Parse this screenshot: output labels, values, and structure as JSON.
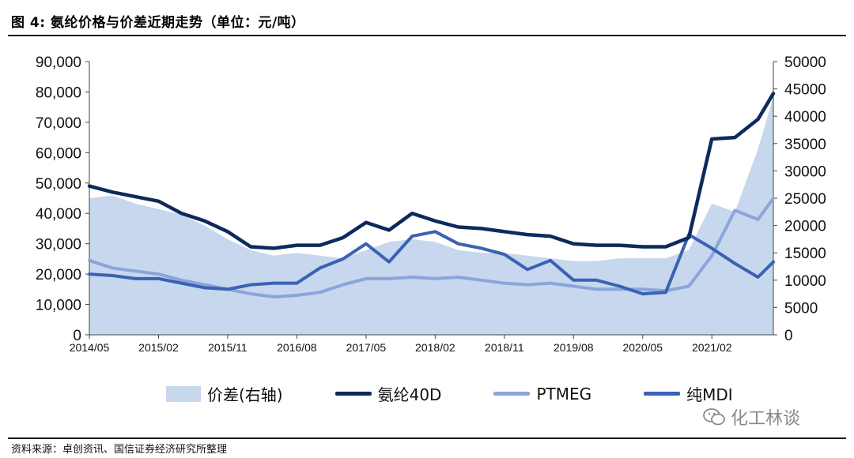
{
  "header": {
    "title": "图 4: 氨纶价格与价差近期走势（单位：元/吨）"
  },
  "footer": {
    "source": "资料来源：卓创资讯、国信证券经济研究所整理"
  },
  "watermark": {
    "text": "化工林谈",
    "icon": "wechat-icon"
  },
  "chart_data": {
    "type": "line",
    "title": "",
    "x_tick_labels": [
      "2014/05",
      "2015/02",
      "2015/11",
      "2016/08",
      "2017/05",
      "2018/02",
      "2018/11",
      "2019/08",
      "2020/05",
      "2021/02"
    ],
    "x_range_months": [
      "2014/05",
      "2021/10"
    ],
    "y_left": {
      "range": [
        0,
        90000
      ],
      "ticks": [
        "0",
        "10,000",
        "20,000",
        "30,000",
        "40,000",
        "50,000",
        "60,000",
        "70,000",
        "80,000",
        "90,000"
      ]
    },
    "y_right": {
      "range": [
        0,
        50000
      ],
      "ticks": [
        "0",
        "5000",
        "10000",
        "15000",
        "20000",
        "25000",
        "30000",
        "35000",
        "40000",
        "45000",
        "50000"
      ]
    },
    "colors": {
      "spread": "#c7d7ee",
      "spandex_40d": "#0d2a5c",
      "ptmeg": "#8aa5da",
      "pure_mdi": "#3a62b4"
    },
    "series": [
      {
        "name": "价差(右轴)",
        "axis": "right",
        "style": "area",
        "x": [
          "2014/05",
          "2014/08",
          "2014/11",
          "2015/02",
          "2015/05",
          "2015/08",
          "2015/11",
          "2016/02",
          "2016/05",
          "2016/08",
          "2016/11",
          "2017/02",
          "2017/05",
          "2017/08",
          "2017/11",
          "2018/02",
          "2018/05",
          "2018/08",
          "2018/11",
          "2019/02",
          "2019/05",
          "2019/08",
          "2019/11",
          "2020/02",
          "2020/05",
          "2020/08",
          "2020/11",
          "2021/02",
          "2021/05",
          "2021/08",
          "2021/10"
        ],
        "values": [
          25000,
          25500,
          24000,
          23000,
          22000,
          20000,
          17500,
          15500,
          14500,
          15000,
          14500,
          14000,
          15500,
          17000,
          17500,
          17000,
          15500,
          15000,
          15000,
          14500,
          14000,
          13500,
          13500,
          14000,
          14000,
          14000,
          15500,
          24000,
          22500,
          34000,
          43500
        ]
      },
      {
        "name": "氨纶40D",
        "axis": "left",
        "style": "line",
        "x": [
          "2014/05",
          "2014/08",
          "2014/11",
          "2015/02",
          "2015/05",
          "2015/08",
          "2015/11",
          "2016/02",
          "2016/05",
          "2016/08",
          "2016/11",
          "2017/02",
          "2017/05",
          "2017/08",
          "2017/11",
          "2018/02",
          "2018/05",
          "2018/08",
          "2018/11",
          "2019/02",
          "2019/05",
          "2019/08",
          "2019/11",
          "2020/02",
          "2020/05",
          "2020/08",
          "2020/11",
          "2021/02",
          "2021/05",
          "2021/08",
          "2021/10"
        ],
        "values": [
          49000,
          47000,
          45500,
          44000,
          40000,
          37500,
          34000,
          29000,
          28500,
          29500,
          29500,
          32000,
          37000,
          34500,
          40000,
          37500,
          35500,
          35000,
          34000,
          33000,
          32500,
          30000,
          29500,
          29500,
          29000,
          29000,
          32000,
          64500,
          65000,
          71000,
          79500
        ]
      },
      {
        "name": "PTMEG",
        "axis": "left",
        "style": "line",
        "x": [
          "2014/05",
          "2014/08",
          "2014/11",
          "2015/02",
          "2015/05",
          "2015/08",
          "2015/11",
          "2016/02",
          "2016/05",
          "2016/08",
          "2016/11",
          "2017/02",
          "2017/05",
          "2017/08",
          "2017/11",
          "2018/02",
          "2018/05",
          "2018/08",
          "2018/11",
          "2019/02",
          "2019/05",
          "2019/08",
          "2019/11",
          "2020/02",
          "2020/05",
          "2020/08",
          "2020/11",
          "2021/02",
          "2021/05",
          "2021/08",
          "2021/10"
        ],
        "values": [
          24500,
          22000,
          21000,
          20000,
          18000,
          16500,
          15000,
          13500,
          12500,
          13000,
          14000,
          16500,
          18500,
          18500,
          19000,
          18500,
          19000,
          18000,
          17000,
          16500,
          17000,
          16000,
          15000,
          15000,
          15000,
          14500,
          16000,
          26000,
          41000,
          38000,
          45000
        ]
      },
      {
        "name": "纯MDI",
        "axis": "left",
        "style": "line",
        "x": [
          "2014/05",
          "2014/08",
          "2014/11",
          "2015/02",
          "2015/05",
          "2015/08",
          "2015/11",
          "2016/02",
          "2016/05",
          "2016/08",
          "2016/11",
          "2017/02",
          "2017/05",
          "2017/08",
          "2017/11",
          "2018/02",
          "2018/05",
          "2018/08",
          "2018/11",
          "2019/02",
          "2019/05",
          "2019/08",
          "2019/11",
          "2020/02",
          "2020/05",
          "2020/08",
          "2020/11",
          "2021/02",
          "2021/05",
          "2021/08",
          "2021/10"
        ],
        "values": [
          20000,
          19500,
          18500,
          18500,
          17000,
          15500,
          15000,
          16500,
          17000,
          17000,
          22000,
          25000,
          30000,
          24000,
          32500,
          34000,
          30000,
          28500,
          26500,
          21500,
          24500,
          18000,
          18000,
          16000,
          13500,
          14000,
          33000,
          28500,
          23500,
          19000,
          24000
        ]
      }
    ]
  }
}
